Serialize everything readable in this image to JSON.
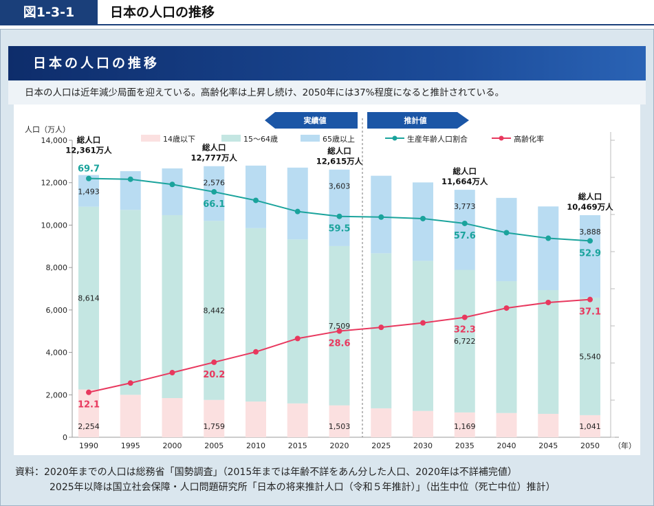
{
  "header": {
    "figure_no": "図1-3-1",
    "title": "日本の人口の推移"
  },
  "banner": "日本の人口の推移",
  "subtitle": "日本の人口は近年減少局面を迎えている。高齢化率は上昇し続け、2050年には37%程度になると推計されている。",
  "source": [
    "資料：2020年までの人口は総務省「国勢調査」（2015年までは年齢不詳をあん分した人口、2020年は不詳補完値）",
    "2025年以降は国立社会保障・人口問題研究所「日本の将来推計人口（令和５年推計）」（出生中位（死亡中位）推計）"
  ],
  "chart_data": {
    "type": "bar",
    "stacked": true,
    "ylabel": "人口（万人）",
    "xlabel": "（年）",
    "ylim": [
      0,
      14000
    ],
    "yticks": [
      0,
      2000,
      4000,
      6000,
      8000,
      10000,
      12000,
      14000
    ],
    "y2lim": [
      0,
      80
    ],
    "categories": [
      "1990",
      "1995",
      "2000",
      "2005",
      "2010",
      "2015",
      "2020",
      "2025",
      "2030",
      "2035",
      "2040",
      "2045",
      "2050"
    ],
    "series": [
      {
        "name": "14歳以下",
        "color": "#fbe0e0",
        "values": [
          2254,
          2001,
          1847,
          1759,
          1684,
          1595,
          1503,
          1363,
          1240,
          1169,
          1142,
          1103,
          1041
        ]
      },
      {
        "name": "15～64歳",
        "color": "#c4e6e2",
        "values": [
          8614,
          8716,
          8622,
          8442,
          8173,
          7728,
          7509,
          7310,
          7076,
          6722,
          6213,
          5832,
          5540
        ]
      },
      {
        "name": "65歳以上",
        "color": "#b9dcf2",
        "values": [
          1493,
          1826,
          2204,
          2576,
          2948,
          3387,
          3603,
          3653,
          3696,
          3773,
          3928,
          3945,
          3888
        ]
      }
    ],
    "lines": [
      {
        "name": "生産年齢人口割合",
        "color": "#1aa39c",
        "values": [
          69.7,
          69.5,
          68.1,
          66.1,
          63.8,
          60.8,
          59.5,
          59.3,
          58.9,
          57.6,
          55.1,
          53.6,
          52.9
        ],
        "labeled": [
          0,
          3,
          6,
          9,
          12
        ]
      },
      {
        "name": "高齢化率",
        "color": "#e8385e",
        "values": [
          12.1,
          14.6,
          17.4,
          20.2,
          23.0,
          26.6,
          28.6,
          29.6,
          30.8,
          32.3,
          34.8,
          36.3,
          37.1
        ],
        "labeled": [
          0,
          3,
          6,
          9,
          12
        ]
      }
    ],
    "bar_labeled": [
      0,
      3,
      6,
      9,
      12
    ],
    "total_labels": [
      {
        "i": 0,
        "line1": "総人口",
        "line2": "12,361万人"
      },
      {
        "i": 3,
        "line1": "総人口",
        "line2": "12,777万人"
      },
      {
        "i": 6,
        "line1": "総人口",
        "line2": "12,615万人"
      },
      {
        "i": 9,
        "line1": "総人口",
        "line2": "11,664万人"
      },
      {
        "i": 12,
        "line1": "総人口",
        "line2": "10,469万人"
      }
    ],
    "period_labels": {
      "actual": "実績値",
      "projected": "推計値"
    }
  }
}
